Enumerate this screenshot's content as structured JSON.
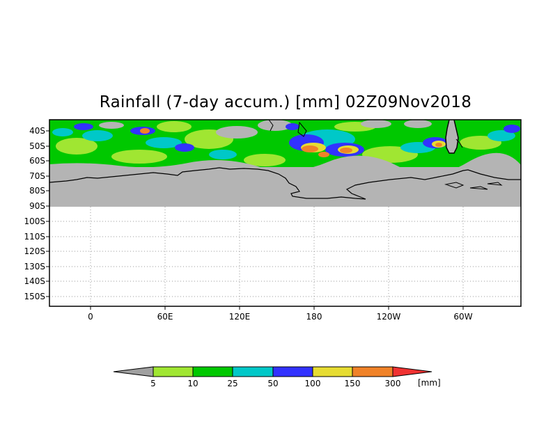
{
  "title": "Rainfall (7-day accum.) [mm] 02Z09Nov2018",
  "map": {
    "lat_labels": [
      "40S",
      "50S",
      "60S",
      "70S",
      "80S",
      "90S",
      "100S",
      "110S",
      "120S",
      "130S",
      "140S",
      "150S"
    ],
    "lon_labels": [
      "0",
      "60E",
      "120E",
      "180",
      "120W",
      "60W"
    ],
    "no_data_color": "#b4b4b4",
    "coastline_color": "#000000",
    "grid": "dotted"
  },
  "colorbar": {
    "labels": [
      "5",
      "10",
      "25",
      "50",
      "100",
      "150",
      "300"
    ],
    "unit": "[mm]",
    "colors": [
      "#a0a0a0",
      "#a0e632",
      "#00c800",
      "#00c8c8",
      "#3232ff",
      "#e6dc32",
      "#f08228",
      "#f03232"
    ]
  }
}
